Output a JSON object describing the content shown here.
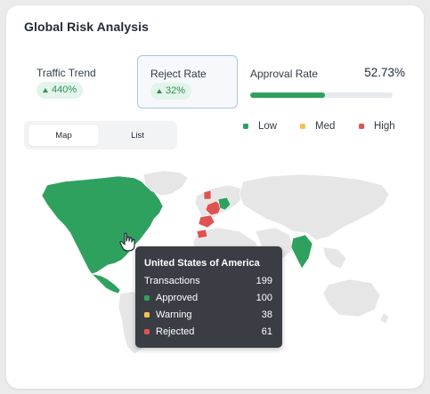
{
  "card": {
    "title": "Global Risk Analysis"
  },
  "metrics": [
    {
      "label": "Traffic Trend",
      "change": "440%"
    },
    {
      "label": "Reject Rate",
      "change": "32%"
    }
  ],
  "approval": {
    "label": "Approval Rate",
    "value": "52.73%",
    "fraction": 0.5273
  },
  "view_toggle": {
    "options": [
      "Map",
      "List"
    ],
    "selected": "Map"
  },
  "legend": [
    {
      "label": "Low",
      "color": "#2fa15f"
    },
    {
      "label": "Med",
      "color": "#f2c14e"
    },
    {
      "label": "High",
      "color": "#e05252"
    }
  ],
  "map": {
    "colors": {
      "approved": "#2fa15f",
      "rejected": "#e05252",
      "neutral": "#e6e6e6",
      "border": "#ffffff"
    }
  },
  "tooltip": {
    "country": "United States of America",
    "rows": [
      {
        "label": "Transactions",
        "value": "199"
      },
      {
        "label": "Approved",
        "value": "100",
        "color": "#2fa15f"
      },
      {
        "label": "Warning",
        "value": "38",
        "color": "#f2c14e"
      },
      {
        "label": "Rejected",
        "value": "61",
        "color": "#e05252"
      }
    ]
  }
}
